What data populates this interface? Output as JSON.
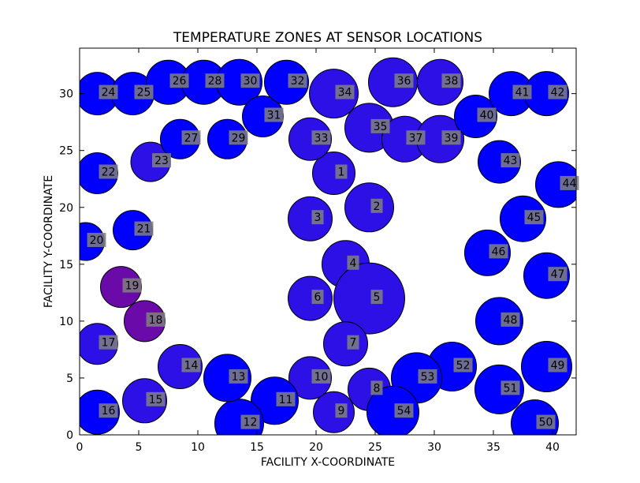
{
  "chart_data": {
    "type": "scatter",
    "title": "TEMPERATURE ZONES AT SENSOR LOCATIONS",
    "xlabel": "FACILITY X-COORDINATE",
    "ylabel": "FACILITY Y-COORDINATE",
    "xlim": [
      0,
      42
    ],
    "ylim": [
      0,
      34
    ],
    "xticks": [
      0,
      5,
      10,
      15,
      20,
      25,
      30,
      35,
      40
    ],
    "yticks": [
      0,
      5,
      10,
      15,
      20,
      25,
      30
    ],
    "grid": false,
    "marker_edge_color": "#000000",
    "label_box_color": "#808080",
    "points": [
      {
        "label": "1",
        "x": 21.5,
        "y": 23,
        "r": 27,
        "color": "#2c10e6"
      },
      {
        "label": "2",
        "x": 24.5,
        "y": 20,
        "r": 31,
        "color": "#2c10e6"
      },
      {
        "label": "3",
        "x": 19.5,
        "y": 19,
        "r": 28,
        "color": "#2c10e6"
      },
      {
        "label": "4",
        "x": 22.5,
        "y": 15,
        "r": 30,
        "color": "#2c10e6"
      },
      {
        "label": "5",
        "x": 24.5,
        "y": 12,
        "r": 45,
        "color": "#2c10e6"
      },
      {
        "label": "6",
        "x": 19.5,
        "y": 12,
        "r": 28,
        "color": "#2c10e6"
      },
      {
        "label": "7",
        "x": 22.5,
        "y": 8,
        "r": 28,
        "color": "#2c10e6"
      },
      {
        "label": "8",
        "x": 24.5,
        "y": 4,
        "r": 27,
        "color": "#2c10e6"
      },
      {
        "label": "9",
        "x": 21.5,
        "y": 2,
        "r": 26,
        "color": "#2c10e6"
      },
      {
        "label": "10",
        "x": 19.5,
        "y": 5,
        "r": 27,
        "color": "#2c10e6"
      },
      {
        "label": "11",
        "x": 16.5,
        "y": 3,
        "r": 30,
        "color": "#0000ff"
      },
      {
        "label": "12",
        "x": 13.5,
        "y": 1,
        "r": 31,
        "color": "#0000ff"
      },
      {
        "label": "13",
        "x": 12.5,
        "y": 5,
        "r": 30,
        "color": "#0000ff"
      },
      {
        "label": "14",
        "x": 8.5,
        "y": 6,
        "r": 28,
        "color": "#2c10e6"
      },
      {
        "label": "15",
        "x": 5.5,
        "y": 3,
        "r": 28,
        "color": "#2c10e6"
      },
      {
        "label": "16",
        "x": 1.5,
        "y": 2,
        "r": 28,
        "color": "#0000ff"
      },
      {
        "label": "17",
        "x": 1.5,
        "y": 8,
        "r": 26,
        "color": "#2c10e6"
      },
      {
        "label": "18",
        "x": 5.5,
        "y": 10,
        "r": 26,
        "color": "#6a0aa8"
      },
      {
        "label": "19",
        "x": 3.5,
        "y": 13,
        "r": 26,
        "color": "#6a0aa8"
      },
      {
        "label": "20",
        "x": 0.5,
        "y": 17,
        "r": 24,
        "color": "#0000ff"
      },
      {
        "label": "21",
        "x": 4.5,
        "y": 18,
        "r": 25,
        "color": "#0000ff"
      },
      {
        "label": "22",
        "x": 1.5,
        "y": 23,
        "r": 26,
        "color": "#0000ff"
      },
      {
        "label": "23",
        "x": 6.0,
        "y": 24,
        "r": 25,
        "color": "#2c10e6"
      },
      {
        "label": "24",
        "x": 1.5,
        "y": 30,
        "r": 27,
        "color": "#0000ff"
      },
      {
        "label": "25",
        "x": 4.5,
        "y": 30,
        "r": 27,
        "color": "#0000ff"
      },
      {
        "label": "26",
        "x": 7.5,
        "y": 31,
        "r": 28,
        "color": "#0000ff"
      },
      {
        "label": "27",
        "x": 8.5,
        "y": 26,
        "r": 25,
        "color": "#0000ff"
      },
      {
        "label": "28",
        "x": 10.5,
        "y": 31,
        "r": 28,
        "color": "#0000ff"
      },
      {
        "label": "29",
        "x": 12.5,
        "y": 26,
        "r": 25,
        "color": "#0000ff"
      },
      {
        "label": "30",
        "x": 13.5,
        "y": 31,
        "r": 29,
        "color": "#0000ff"
      },
      {
        "label": "31",
        "x": 15.5,
        "y": 28,
        "r": 26,
        "color": "#0000ff"
      },
      {
        "label": "32",
        "x": 17.5,
        "y": 31,
        "r": 28,
        "color": "#0000ff"
      },
      {
        "label": "33",
        "x": 19.5,
        "y": 26,
        "r": 27,
        "color": "#2c10e6"
      },
      {
        "label": "34",
        "x": 21.5,
        "y": 30,
        "r": 31,
        "color": "#2c10e6"
      },
      {
        "label": "35",
        "x": 24.5,
        "y": 27,
        "r": 31,
        "color": "#2c10e6"
      },
      {
        "label": "36",
        "x": 26.5,
        "y": 31,
        "r": 31,
        "color": "#2c10e6"
      },
      {
        "label": "37",
        "x": 27.5,
        "y": 26,
        "r": 29,
        "color": "#2c10e6"
      },
      {
        "label": "38",
        "x": 30.5,
        "y": 31,
        "r": 29,
        "color": "#2c10e6"
      },
      {
        "label": "39",
        "x": 30.5,
        "y": 26,
        "r": 30,
        "color": "#2c10e6"
      },
      {
        "label": "40",
        "x": 33.5,
        "y": 28,
        "r": 27,
        "color": "#0000ff"
      },
      {
        "label": "41",
        "x": 36.5,
        "y": 30,
        "r": 28,
        "color": "#0000ff"
      },
      {
        "label": "42",
        "x": 39.5,
        "y": 30,
        "r": 28,
        "color": "#0000ff"
      },
      {
        "label": "43",
        "x": 35.5,
        "y": 24,
        "r": 27,
        "color": "#0000ff"
      },
      {
        "label": "44",
        "x": 40.5,
        "y": 22,
        "r": 29,
        "color": "#0000ff"
      },
      {
        "label": "45",
        "x": 37.5,
        "y": 19,
        "r": 29,
        "color": "#0000ff"
      },
      {
        "label": "46",
        "x": 34.5,
        "y": 16,
        "r": 29,
        "color": "#0000ff"
      },
      {
        "label": "47",
        "x": 39.5,
        "y": 14,
        "r": 29,
        "color": "#0000ff"
      },
      {
        "label": "48",
        "x": 35.5,
        "y": 10,
        "r": 30,
        "color": "#0000ff"
      },
      {
        "label": "49",
        "x": 39.5,
        "y": 6,
        "r": 32,
        "color": "#0000ff"
      },
      {
        "label": "50",
        "x": 38.5,
        "y": 1,
        "r": 30,
        "color": "#0000ff"
      },
      {
        "label": "51",
        "x": 35.5,
        "y": 4,
        "r": 31,
        "color": "#0000ff"
      },
      {
        "label": "52",
        "x": 31.5,
        "y": 6,
        "r": 31,
        "color": "#0000ff"
      },
      {
        "label": "53",
        "x": 28.5,
        "y": 5,
        "r": 32,
        "color": "#0000ff"
      },
      {
        "label": "54",
        "x": 26.5,
        "y": 2,
        "r": 33,
        "color": "#0000ff"
      }
    ]
  }
}
